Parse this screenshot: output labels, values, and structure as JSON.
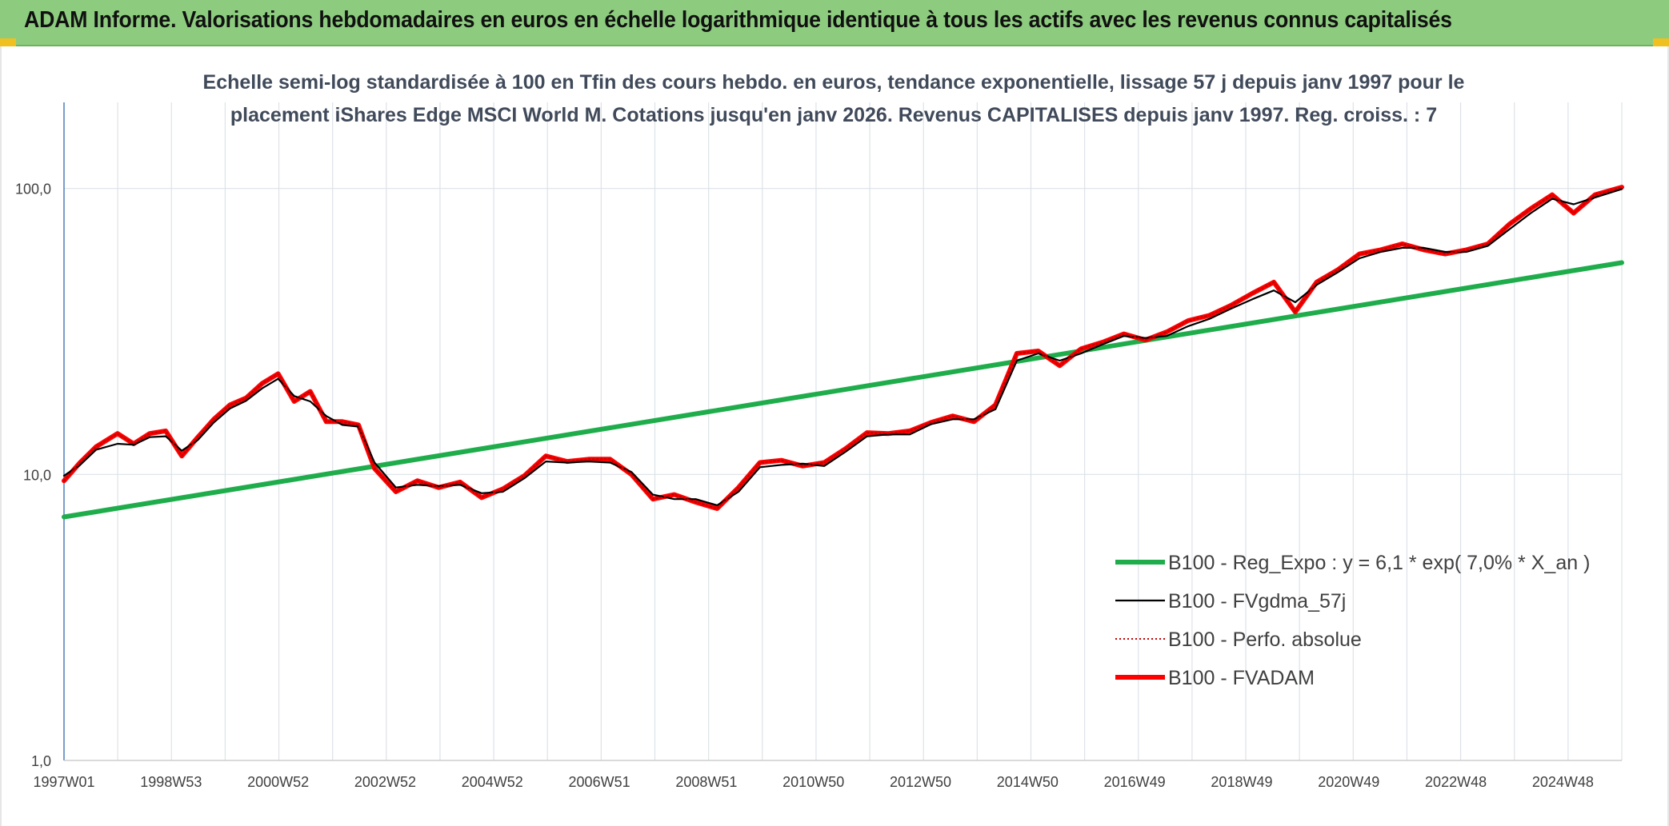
{
  "header": {
    "title": "ADAM Informe. Valorisations hebdomadaires en euros en échelle logarithmique identique à tous les actifs avec les revenus connus capitalisés"
  },
  "chart_data": {
    "type": "line",
    "subtitle_lines": [
      "Echelle semi-log standardisée à 100 en Tfin des cours hebdo. en euros, tendance exponentielle, lissage 57 j depuis janv 1997 pour le",
      "placement iShares Edge MSCI World M. Cotations jusqu'en janv 2026. Revenus CAPITALISES depuis janv 1997. Reg. croiss. : 7"
    ],
    "y_scale": "log",
    "ylim": [
      1,
      200
    ],
    "y_ticks": [
      {
        "value": 1,
        "label": "1,0"
      },
      {
        "value": 10,
        "label": "10,0"
      },
      {
        "value": 100,
        "label": "100,0"
      }
    ],
    "xlim": [
      1997.0,
      2026.1
    ],
    "x_ticks": [
      {
        "value": 1997.0,
        "label": "1997W01"
      },
      {
        "value": 1999.0,
        "label": "1998W53"
      },
      {
        "value": 2001.0,
        "label": "2000W52"
      },
      {
        "value": 2003.0,
        "label": "2002W52"
      },
      {
        "value": 2005.0,
        "label": "2004W52"
      },
      {
        "value": 2007.0,
        "label": "2006W51"
      },
      {
        "value": 2009.0,
        "label": "2008W51"
      },
      {
        "value": 2011.0,
        "label": "2010W50"
      },
      {
        "value": 2013.0,
        "label": "2012W50"
      },
      {
        "value": 2015.0,
        "label": "2014W50"
      },
      {
        "value": 2017.0,
        "label": "2016W49"
      },
      {
        "value": 2019.0,
        "label": "2018W49"
      },
      {
        "value": 2021.0,
        "label": "2020W49"
      },
      {
        "value": 2023.0,
        "label": "2022W48"
      },
      {
        "value": 2025.0,
        "label": "2024W48"
      }
    ],
    "grid": true,
    "legend_position": "bottom-right",
    "series": [
      {
        "name": "B100 - Reg_Expo : y = 6,1 * exp( 7,0% *  X_an )",
        "color": "#1fad4c",
        "style": "thick",
        "x": [
          1997.0,
          2026.1
        ],
        "y": [
          7.1,
          55.0
        ]
      },
      {
        "name": "B100 - FVgdma_57j",
        "color": "#000000",
        "style": "thin",
        "x": [
          1997.0,
          1997.3,
          1997.6,
          1998.0,
          1998.3,
          1998.6,
          1998.9,
          1999.2,
          1999.5,
          1999.8,
          2000.1,
          2000.4,
          2000.7,
          2001.0,
          2001.3,
          2001.6,
          2001.9,
          2002.2,
          2002.5,
          2002.8,
          2003.2,
          2003.6,
          2004.0,
          2004.4,
          2004.8,
          2005.2,
          2005.6,
          2006.0,
          2006.4,
          2006.8,
          2007.2,
          2007.6,
          2008.0,
          2008.4,
          2008.8,
          2009.2,
          2009.6,
          2010.0,
          2010.4,
          2010.8,
          2011.2,
          2011.6,
          2012.0,
          2012.4,
          2012.8,
          2013.2,
          2013.6,
          2014.0,
          2014.4,
          2014.8,
          2015.2,
          2015.6,
          2016.0,
          2016.4,
          2016.8,
          2017.2,
          2017.6,
          2018.0,
          2018.4,
          2018.8,
          2019.2,
          2019.6,
          2020.0,
          2020.4,
          2020.8,
          2021.2,
          2021.6,
          2022.0,
          2022.4,
          2022.8,
          2023.2,
          2023.6,
          2024.0,
          2024.4,
          2024.8,
          2025.2,
          2025.6,
          2026.1
        ],
        "y": [
          9.9,
          10.8,
          12.2,
          12.8,
          12.7,
          13.5,
          13.6,
          12.1,
          13.2,
          15.2,
          17.0,
          18.1,
          20.0,
          21.6,
          18.8,
          18.0,
          16.0,
          14.9,
          14.7,
          11.0,
          9.0,
          9.2,
          9.1,
          9.2,
          8.6,
          8.7,
          9.7,
          11.1,
          11.0,
          11.1,
          11.0,
          10.2,
          8.5,
          8.2,
          8.2,
          7.8,
          8.7,
          10.6,
          10.8,
          10.9,
          10.7,
          12.0,
          13.6,
          13.8,
          13.8,
          15.0,
          15.6,
          15.6,
          16.9,
          25.0,
          26.5,
          25.0,
          26.5,
          28.5,
          30.5,
          30.0,
          30.5,
          33.0,
          35.0,
          38.0,
          41.0,
          44.0,
          40.0,
          46.0,
          51.0,
          57.0,
          60.0,
          62.0,
          62.0,
          60.0,
          60.0,
          63.0,
          72.0,
          82.0,
          92.0,
          88.0,
          93.0,
          99.5
        ]
      },
      {
        "name": "B100 - Perfo. absolue",
        "color": "#c00000",
        "style": "dotted",
        "x": [
          1997.0,
          1997.3,
          1997.6,
          1998.0,
          1998.3,
          1998.6,
          1998.9,
          1999.2,
          1999.5,
          1999.8,
          2000.1,
          2000.4,
          2000.7,
          2001.0,
          2001.3,
          2001.6,
          2001.9,
          2002.2,
          2002.5,
          2002.8,
          2003.2,
          2003.6,
          2004.0,
          2004.4,
          2004.8,
          2005.2,
          2005.6,
          2006.0,
          2006.4,
          2006.8,
          2007.2,
          2007.6,
          2008.0,
          2008.4,
          2008.8,
          2009.2,
          2009.6,
          2010.0,
          2010.4,
          2010.8,
          2011.2,
          2011.6,
          2012.0,
          2012.4,
          2012.8,
          2013.2,
          2013.6,
          2014.0,
          2014.4,
          2014.8,
          2015.2,
          2015.6,
          2016.0,
          2016.4,
          2016.8,
          2017.2,
          2017.6,
          2018.0,
          2018.4,
          2018.8,
          2019.2,
          2019.6,
          2020.0,
          2020.4,
          2020.8,
          2021.2,
          2021.6,
          2022.0,
          2022.4,
          2022.8,
          2023.2,
          2023.6,
          2024.0,
          2024.4,
          2024.8,
          2025.2,
          2025.6,
          2026.1
        ],
        "y": [
          9.5,
          11.0,
          12.5,
          13.9,
          12.8,
          13.9,
          14.2,
          11.6,
          13.5,
          15.6,
          17.5,
          18.5,
          20.8,
          22.5,
          18.0,
          19.5,
          15.3,
          15.3,
          14.9,
          10.5,
          8.7,
          9.5,
          9.0,
          9.4,
          8.3,
          8.9,
          9.9,
          11.6,
          11.1,
          11.3,
          11.3,
          10.0,
          8.2,
          8.5,
          8.0,
          7.6,
          9.0,
          11.0,
          11.2,
          10.7,
          11.0,
          12.3,
          14.0,
          13.9,
          14.2,
          15.2,
          16.0,
          15.3,
          17.5,
          26.5,
          27.0,
          24.0,
          27.5,
          29.0,
          31.0,
          29.5,
          31.5,
          34.5,
          36.0,
          39.0,
          43.0,
          47.0,
          37.0,
          47.0,
          52.0,
          59.0,
          61.0,
          64.0,
          61.0,
          59.0,
          61.0,
          64.0,
          75.0,
          85.0,
          95.0,
          82.0,
          95.0,
          101.0
        ]
      },
      {
        "name": "B100 - FVADAM",
        "color": "#ff0000",
        "style": "thick",
        "x": [
          1997.0,
          1997.3,
          1997.6,
          1998.0,
          1998.3,
          1998.6,
          1998.9,
          1999.2,
          1999.5,
          1999.8,
          2000.1,
          2000.4,
          2000.7,
          2001.0,
          2001.3,
          2001.6,
          2001.9,
          2002.2,
          2002.5,
          2002.8,
          2003.2,
          2003.6,
          2004.0,
          2004.4,
          2004.8,
          2005.2,
          2005.6,
          2006.0,
          2006.4,
          2006.8,
          2007.2,
          2007.6,
          2008.0,
          2008.4,
          2008.8,
          2009.2,
          2009.6,
          2010.0,
          2010.4,
          2010.8,
          2011.2,
          2011.6,
          2012.0,
          2012.4,
          2012.8,
          2013.2,
          2013.6,
          2014.0,
          2014.4,
          2014.8,
          2015.2,
          2015.6,
          2016.0,
          2016.4,
          2016.8,
          2017.2,
          2017.6,
          2018.0,
          2018.4,
          2018.8,
          2019.2,
          2019.6,
          2020.0,
          2020.4,
          2020.8,
          2021.2,
          2021.6,
          2022.0,
          2022.4,
          2022.8,
          2023.2,
          2023.6,
          2024.0,
          2024.4,
          2024.8,
          2025.2,
          2025.6,
          2026.1
        ],
        "y": [
          9.5,
          11.0,
          12.5,
          13.9,
          12.8,
          13.9,
          14.2,
          11.6,
          13.5,
          15.6,
          17.5,
          18.5,
          20.8,
          22.5,
          18.0,
          19.5,
          15.3,
          15.3,
          14.9,
          10.5,
          8.7,
          9.5,
          9.0,
          9.4,
          8.3,
          8.9,
          9.9,
          11.6,
          11.1,
          11.3,
          11.3,
          10.0,
          8.2,
          8.5,
          8.0,
          7.6,
          9.0,
          11.0,
          11.2,
          10.7,
          11.0,
          12.3,
          14.0,
          13.9,
          14.2,
          15.2,
          16.0,
          15.3,
          17.5,
          26.5,
          27.0,
          24.0,
          27.5,
          29.0,
          31.0,
          29.5,
          31.5,
          34.5,
          36.0,
          39.0,
          43.0,
          47.0,
          37.0,
          47.0,
          52.0,
          59.0,
          61.0,
          64.0,
          61.0,
          59.0,
          61.0,
          64.0,
          75.0,
          85.0,
          95.0,
          82.0,
          95.0,
          101.0
        ]
      }
    ],
    "legend_order": [
      0,
      1,
      2,
      3
    ]
  }
}
